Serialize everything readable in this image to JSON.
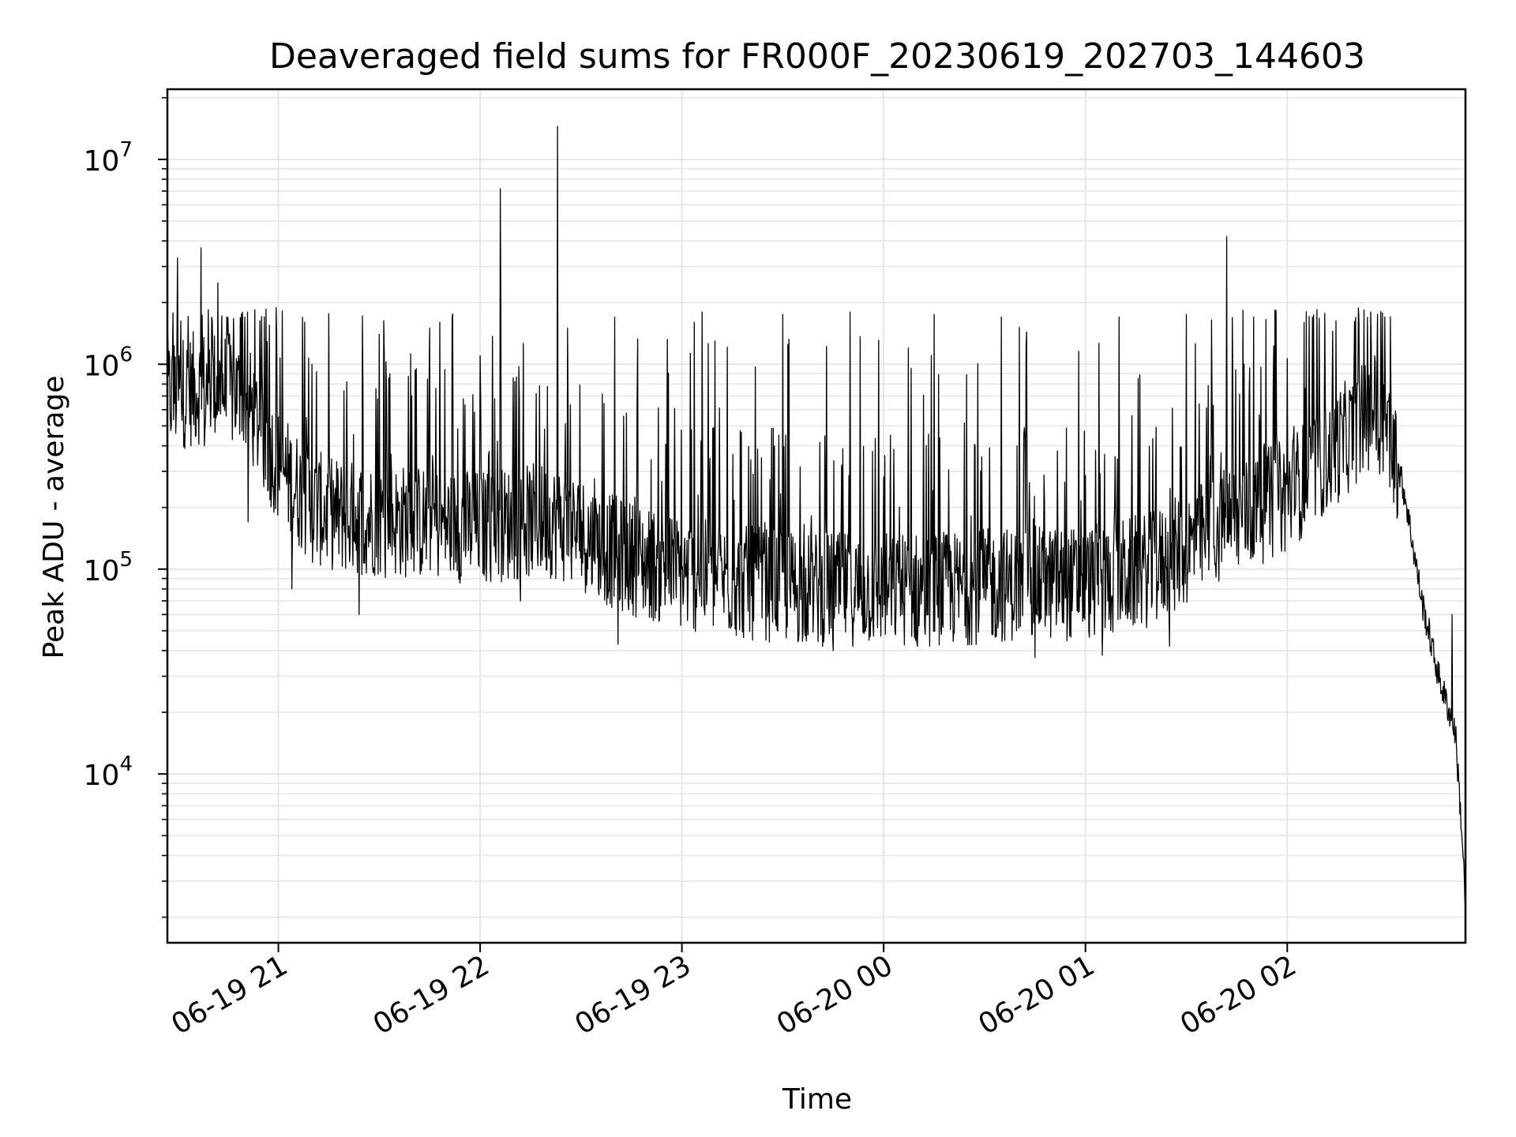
{
  "chart_data": {
    "type": "line",
    "title": "Deaveraged field sums for FR000F_20230619_202703_144603",
    "xlabel": "Time",
    "ylabel": "Peak ADU - average",
    "x_axis": {
      "type": "time",
      "min": "2023-06-19 20:27",
      "max": "2023-06-20 02:53",
      "ticks": [
        {
          "value": "2023-06-19 21:00",
          "label": "06-19 21"
        },
        {
          "value": "2023-06-19 22:00",
          "label": "06-19 22"
        },
        {
          "value": "2023-06-19 23:00",
          "label": "06-19 23"
        },
        {
          "value": "2023-06-20 00:00",
          "label": "06-20 00"
        },
        {
          "value": "2023-06-20 01:00",
          "label": "06-20 01"
        },
        {
          "value": "2023-06-20 02:00",
          "label": "06-20 02"
        }
      ]
    },
    "y_axis": {
      "scale": "log",
      "ylim": [
        1500,
        22000000
      ],
      "ticks": [
        {
          "value": 10000,
          "base": "10",
          "exp": "4"
        },
        {
          "value": 100000,
          "base": "10",
          "exp": "5"
        },
        {
          "value": 1000000,
          "base": "10",
          "exp": "6"
        },
        {
          "value": 10000000,
          "base": "10",
          "exp": "7"
        }
      ]
    },
    "grid": true,
    "line_color": "#000000",
    "grid_color": "#e6e6e6",
    "series": [
      {
        "baseline": [
          [
            "2023-06-19 20:27",
            700000
          ],
          [
            "2023-06-19 20:40",
            800000
          ],
          [
            "2023-06-19 20:50",
            700000
          ],
          [
            "2023-06-19 21:00",
            320000
          ],
          [
            "2023-06-19 21:10",
            200000
          ],
          [
            "2023-06-19 21:20",
            180000
          ],
          [
            "2023-06-19 21:40",
            170000
          ],
          [
            "2023-06-19 22:00",
            160000
          ],
          [
            "2023-06-19 22:20",
            175000
          ],
          [
            "2023-06-19 22:30",
            150000
          ],
          [
            "2023-06-19 22:40",
            120000
          ],
          [
            "2023-06-19 23:00",
            95000
          ],
          [
            "2023-06-19 23:20",
            85000
          ],
          [
            "2023-06-19 23:40",
            80000
          ],
          [
            "2023-06-20 00:00",
            80000
          ],
          [
            "2023-06-20 00:20",
            80000
          ],
          [
            "2023-06-20 00:40",
            85000
          ],
          [
            "2023-06-20 01:00",
            85000
          ],
          [
            "2023-06-20 01:20",
            100000
          ],
          [
            "2023-06-20 01:40",
            160000
          ],
          [
            "2023-06-20 02:00",
            230000
          ],
          [
            "2023-06-20 02:10",
            330000
          ],
          [
            "2023-06-20 02:20",
            480000
          ],
          [
            "2023-06-20 02:25",
            600000
          ],
          [
            "2023-06-20 02:30",
            500000
          ],
          [
            "2023-06-20 02:35",
            230000
          ],
          [
            "2023-06-20 02:40",
            70000
          ],
          [
            "2023-06-20 02:45",
            30000
          ],
          [
            "2023-06-20 02:50",
            16000
          ],
          [
            "2023-06-20 02:52",
            5000
          ],
          [
            "2023-06-20 02:53",
            2200
          ]
        ],
        "peaks": [
          [
            "2023-06-19 20:30",
            3300000
          ],
          [
            "2023-06-19 20:37",
            3700000
          ],
          [
            "2023-06-19 20:42",
            2500000
          ],
          [
            "2023-06-19 20:50",
            1700000
          ],
          [
            "2023-06-19 21:10",
            1000000
          ],
          [
            "2023-06-19 21:30",
            1400000
          ],
          [
            "2023-06-19 21:45",
            1500000
          ],
          [
            "2023-06-19 22:00",
            1100000
          ],
          [
            "2023-06-19 22:06",
            7200000
          ],
          [
            "2023-06-19 22:23",
            14500000
          ],
          [
            "2023-06-19 22:40",
            1700000
          ],
          [
            "2023-06-19 23:06",
            1800000
          ],
          [
            "2023-06-19 23:30",
            1750000
          ],
          [
            "2023-06-19 23:50",
            1800000
          ],
          [
            "2023-06-20 00:15",
            1750000
          ],
          [
            "2023-06-20 00:35",
            1700000
          ],
          [
            "2023-06-20 01:10",
            1700000
          ],
          [
            "2023-06-20 01:30",
            1750000
          ],
          [
            "2023-06-20 01:42",
            4200000
          ],
          [
            "2023-06-20 01:50",
            1700000
          ],
          [
            "2023-06-20 02:05",
            1600000
          ],
          [
            "2023-06-20 02:26",
            1100000
          ],
          [
            "2023-06-20 02:49",
            60000
          ]
        ],
        "troughs": [
          [
            "2023-06-19 20:38",
            400000
          ],
          [
            "2023-06-19 20:51",
            170000
          ],
          [
            "2023-06-19 21:04",
            80000
          ],
          [
            "2023-06-19 21:24",
            60000
          ],
          [
            "2023-06-19 22:12",
            70000
          ],
          [
            "2023-06-19 22:41",
            43000
          ],
          [
            "2023-06-19 23:25",
            45000
          ],
          [
            "2023-06-19 23:45",
            40000
          ],
          [
            "2023-06-20 00:10",
            42000
          ],
          [
            "2023-06-20 00:45",
            37000
          ],
          [
            "2023-06-20 01:05",
            38000
          ],
          [
            "2023-06-20 01:25",
            42000
          ]
        ]
      }
    ]
  }
}
